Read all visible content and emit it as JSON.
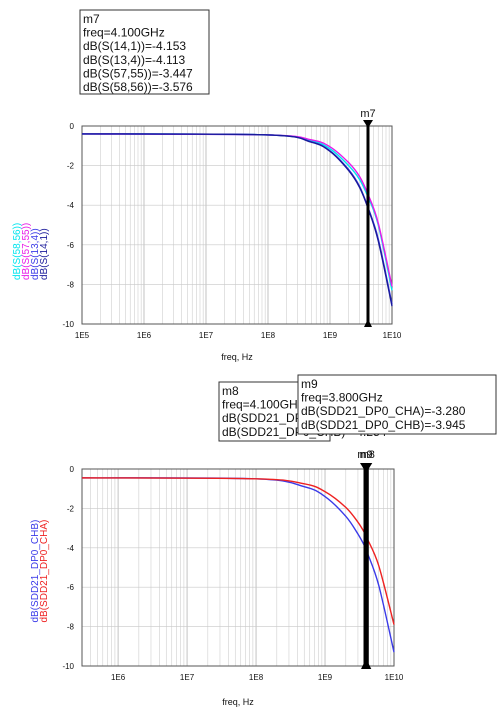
{
  "colors": {
    "cyan": "#00e5ee",
    "magenta": "#e81ae8",
    "blue": "#3a3ae8",
    "darkblue": "#1a1a9a",
    "red": "#ee2222"
  },
  "chart_data": [
    {
      "type": "line",
      "xscale": "log",
      "xlim": [
        100000.0,
        10000000000.0
      ],
      "ylim": [
        -10,
        0
      ],
      "xlabel": "freq, Hz",
      "x_tick_labels": [
        "1E5",
        "1E6",
        "1E7",
        "1E8",
        "1E9",
        "1E10"
      ],
      "y_tick_labels": [
        "0",
        "-2",
        "-4",
        "-6",
        "-8",
        "-10"
      ],
      "grid": true,
      "legend_placement": "left-vertical",
      "series": [
        {
          "name": "dB(S(58,56))",
          "color": "#00e5ee",
          "x": [
            100000.0,
            100000000.0,
            500000000.0,
            1000000000.0,
            2000000000.0,
            3000000000.0,
            4100000000.0,
            6000000000.0,
            10000000000.0
          ],
          "y": [
            -0.4,
            -0.45,
            -0.75,
            -1.15,
            -2.0,
            -2.7,
            -3.58,
            -5.0,
            -8.3
          ]
        },
        {
          "name": "dB(S(57,55))",
          "color": "#e81ae8",
          "x": [
            100000.0,
            100000000.0,
            500000000.0,
            1000000000.0,
            2000000000.0,
            3000000000.0,
            4100000000.0,
            6000000000.0,
            10000000000.0
          ],
          "y": [
            -0.4,
            -0.45,
            -0.7,
            -1.05,
            -1.85,
            -2.55,
            -3.45,
            -4.9,
            -8.1
          ]
        },
        {
          "name": "dB(S(13,4))",
          "color": "#3a3ae8",
          "x": [
            100000.0,
            100000000.0,
            500000000.0,
            1000000000.0,
            2000000000.0,
            3000000000.0,
            4100000000.0,
            6000000000.0,
            10000000000.0
          ],
          "y": [
            -0.4,
            -0.45,
            -0.8,
            -1.25,
            -2.2,
            -3.05,
            -4.11,
            -5.7,
            -9.0
          ]
        },
        {
          "name": "dB(S(14,1))",
          "color": "#1a1a9a",
          "x": [
            100000.0,
            100000000.0,
            500000000.0,
            1000000000.0,
            2000000000.0,
            3000000000.0,
            4100000000.0,
            6000000000.0,
            10000000000.0
          ],
          "y": [
            -0.4,
            -0.45,
            -0.82,
            -1.28,
            -2.25,
            -3.1,
            -4.15,
            -5.8,
            -9.1
          ]
        }
      ],
      "markers": [
        {
          "name": "m7",
          "x": 4100000000.0,
          "readout": [
            "m7",
            "freq=4.100GHz",
            "dB(S(14,1))=-4.153",
            "dB(S(13,4))=-4.113",
            "dB(S(57,55))=-3.447",
            "dB(S(58,56))=-3.576"
          ]
        }
      ]
    },
    {
      "type": "line",
      "xscale": "log",
      "xlim": [
        300000.0,
        10000000000.0
      ],
      "ylim": [
        -10,
        0
      ],
      "xlabel": "freq, Hz",
      "x_tick_labels": [
        "1E6",
        "1E7",
        "1E8",
        "1E9",
        "1E10"
      ],
      "y_tick_labels": [
        "0",
        "-2",
        "-4",
        "-6",
        "-8",
        "-10"
      ],
      "grid": true,
      "legend_placement": "left-vertical",
      "series": [
        {
          "name": "dB(SDD21_DP0_CHB)",
          "color": "#3a3ae8",
          "x": [
            300000.0,
            100000000.0,
            500000000.0,
            1000000000.0,
            2000000000.0,
            3000000000.0,
            3800000000.0,
            4100000000.0,
            6000000000.0,
            10000000000.0
          ],
          "y": [
            -0.45,
            -0.5,
            -0.9,
            -1.4,
            -2.4,
            -3.3,
            -3.95,
            -4.25,
            -5.9,
            -9.3
          ]
        },
        {
          "name": "dB(SDD21_DP0_CHA)",
          "color": "#ee2222",
          "x": [
            300000.0,
            100000000.0,
            500000000.0,
            1000000000.0,
            2000000000.0,
            3000000000.0,
            3800000000.0,
            4100000000.0,
            6000000000.0,
            10000000000.0
          ],
          "y": [
            -0.45,
            -0.5,
            -0.75,
            -1.15,
            -1.95,
            -2.7,
            -3.28,
            -3.54,
            -4.9,
            -7.9
          ]
        }
      ],
      "markers": [
        {
          "name": "m8",
          "x": 4100000000.0,
          "readout": [
            "m8",
            "freq=4.100GHz",
            "dB(SDD21_DP0_CHA)=-3.536",
            "dB(SDD21_DP0_CHB)=-4.254"
          ]
        },
        {
          "name": "m9",
          "x": 3800000000.0,
          "readout": [
            "m9",
            "freq=3.800GHz",
            "dB(SDD21_DP0_CHA)=-3.280",
            "dB(SDD21_DP0_CHB)=-3.945"
          ]
        }
      ]
    }
  ]
}
